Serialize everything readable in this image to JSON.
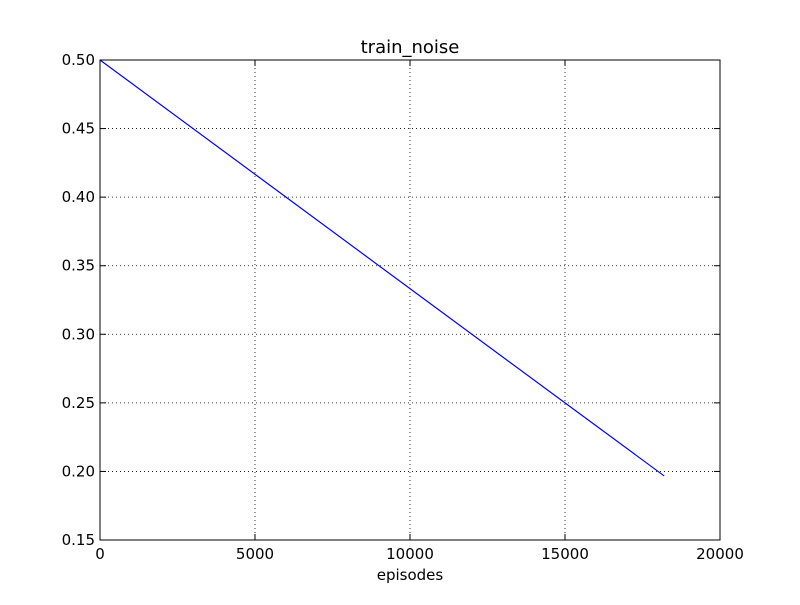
{
  "chart_data": {
    "type": "line",
    "title": "train_noise",
    "xlabel": "episodes",
    "ylabel": "",
    "xlim": [
      0,
      20000
    ],
    "ylim": [
      0.15,
      0.5
    ],
    "x_ticks": [
      0,
      5000,
      10000,
      15000,
      20000
    ],
    "x_tick_labels": [
      "0",
      "5000",
      "10000",
      "15000",
      "20000"
    ],
    "y_ticks": [
      0.15,
      0.2,
      0.25,
      0.3,
      0.35,
      0.4,
      0.45,
      0.5
    ],
    "y_tick_labels": [
      "0.15",
      "0.20",
      "0.25",
      "0.30",
      "0.35",
      "0.40",
      "0.45",
      "0.50"
    ],
    "grid": true,
    "series": [
      {
        "color": "#0000ff",
        "x": [
          0,
          5000,
          10000,
          15000,
          18200
        ],
        "y": [
          0.5,
          0.4167,
          0.3333,
          0.25,
          0.1967
        ]
      }
    ]
  }
}
